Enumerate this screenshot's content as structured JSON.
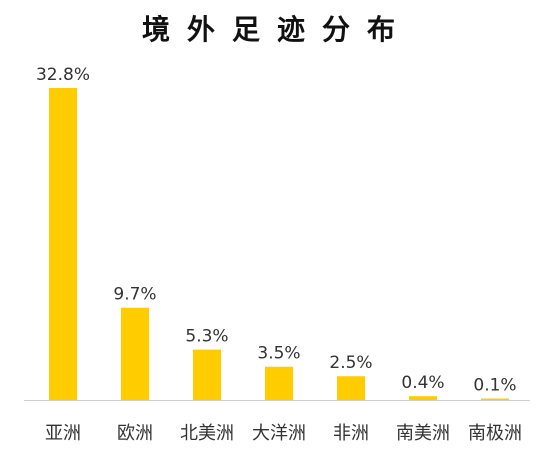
{
  "chart_data": {
    "type": "bar",
    "title": "境外足迹分布",
    "categories": [
      "亚洲",
      "欧洲",
      "北美洲",
      "大洋洲",
      "非洲",
      "南美洲",
      "南极洲"
    ],
    "values": [
      32.8,
      9.7,
      5.3,
      3.5,
      2.5,
      0.4,
      0.1
    ],
    "value_labels": [
      "32.8%",
      "9.7%",
      "5.3%",
      "3.5%",
      "2.5%",
      "0.4%",
      "0.1%"
    ],
    "unit": "%",
    "xlabel": "",
    "ylabel": "",
    "ylim": [
      0,
      32.8
    ],
    "grid": false,
    "legend": "none",
    "bar_color": "#FFCC00",
    "axis_color": "#D0D0D0",
    "label_color": "#333333"
  }
}
